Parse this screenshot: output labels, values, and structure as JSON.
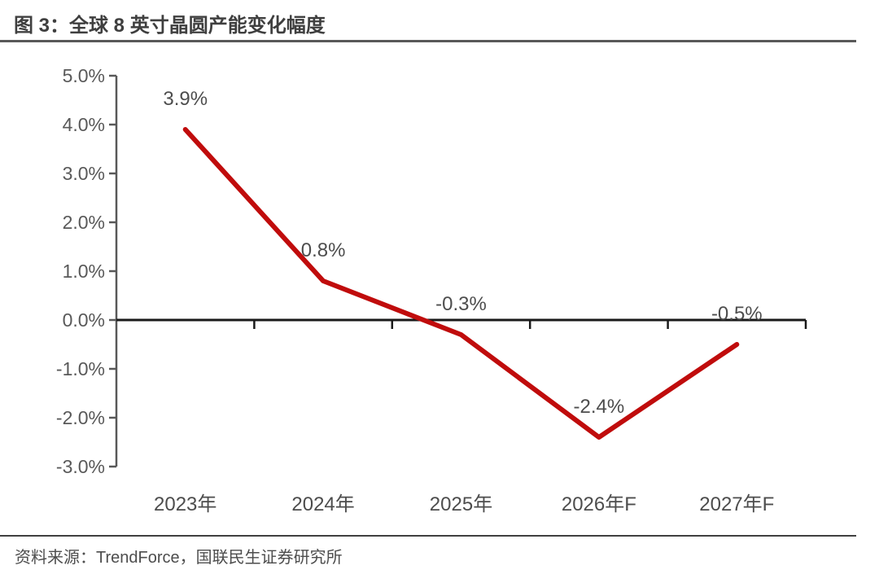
{
  "figure": {
    "title": "图 3：全球 8 英寸晶圆产能变化幅度",
    "source": "资料来源：TrendForce，国联民生证券研究所"
  },
  "colors": {
    "line": "#c00c0c",
    "title_text": "#3f3f3f",
    "axis_tick_text": "#595959",
    "data_label_text": "#4d4d4d",
    "category_text": "#4d4d4d",
    "axis_line": "#595959",
    "zero_line": "#1a1a1a",
    "divider": "#595959"
  },
  "chart_data": {
    "type": "line",
    "title": "全球 8 英寸晶圆产能变化幅度",
    "categories": [
      "2023年",
      "2024年",
      "2025年",
      "2026年F",
      "2027年F"
    ],
    "values": [
      3.9,
      0.8,
      -0.3,
      -2.4,
      -0.5
    ],
    "point_labels": [
      "3.9%",
      "0.8%",
      "-0.3%",
      "-2.4%",
      "-0.5%"
    ],
    "unit": "%",
    "ylim": [
      -3.0,
      5.0
    ],
    "ytick_step": 1.0,
    "ytick_labels": [
      "5.0%",
      "4.0%",
      "3.0%",
      "2.0%",
      "1.0%",
      "0.0%",
      "-1.0%",
      "-2.0%",
      "-3.0%"
    ],
    "xlabel": "",
    "ylabel": "",
    "grid": false,
    "legend": false
  }
}
